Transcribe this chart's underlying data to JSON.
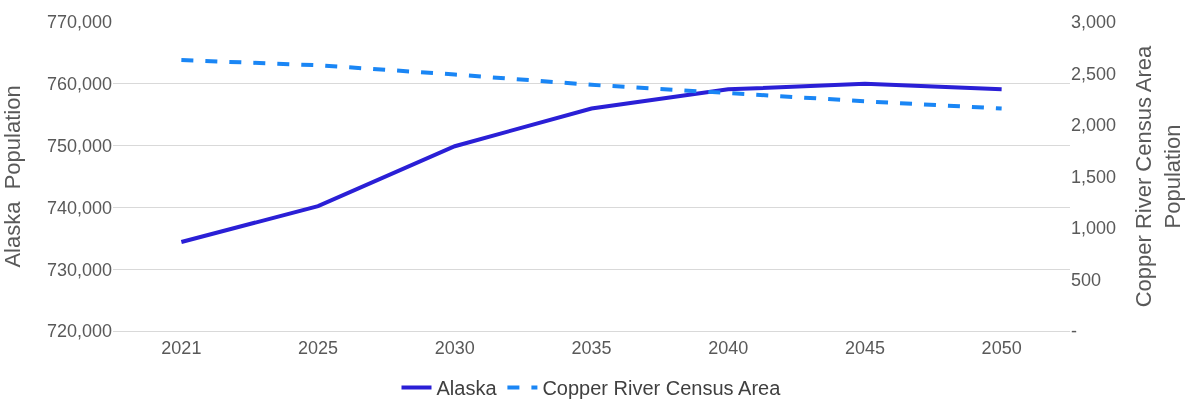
{
  "chart_data": {
    "type": "line",
    "ylabel": "Alaska  Population",
    "y2label": "Copper River Census Area Population",
    "categories": [
      "2021",
      "2025",
      "2030",
      "2035",
      "2040",
      "2045",
      "2050"
    ],
    "series": [
      {
        "name": "Alaska",
        "color": "#2a1fd6",
        "values": [
          734400,
          740200,
          749900,
          756000,
          759100,
          760000,
          759100
        ]
      },
      {
        "name": "Copper River Census Area",
        "color": "#1a86f5",
        "axis": "y2",
        "line_style": "dashed",
        "values": [
          2630,
          2580,
          2490,
          2390,
          2310,
          2230,
          2160
        ]
      }
    ],
    "ylim": [
      720000,
      770000
    ],
    "yticks": [
      {
        "value": 720000,
        "label": "720,000"
      },
      {
        "value": 730000,
        "label": "730,000"
      },
      {
        "value": 740000,
        "label": "740,000"
      },
      {
        "value": 750000,
        "label": "750,000"
      },
      {
        "value": 760000,
        "label": "760,000"
      },
      {
        "value": 770000,
        "label": "770,000"
      }
    ],
    "y2lim": [
      0,
      3000
    ],
    "y2ticks": [
      {
        "value": 0,
        "label": "-"
      },
      {
        "value": 500,
        "label": "500"
      },
      {
        "value": 1000,
        "label": "1,000"
      },
      {
        "value": 1500,
        "label": "1,500"
      },
      {
        "value": 2000,
        "label": "2,000"
      },
      {
        "value": 2500,
        "label": "2,500"
      },
      {
        "value": 3000,
        "label": "3,000"
      }
    ],
    "grid": "y",
    "legend": "bottom"
  }
}
